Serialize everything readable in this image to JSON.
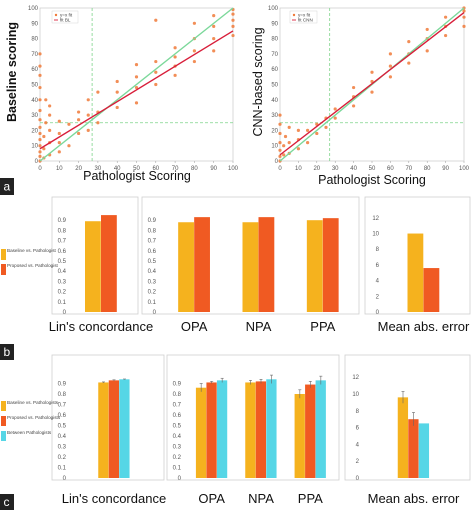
{
  "panel_letters": [
    "a",
    "b",
    "c"
  ],
  "colors": {
    "baseline": "#f5b21e",
    "proposed": "#f05a22",
    "between": "#56d6e6",
    "fit_green": "#7bd89a",
    "fit_red": "#d81e3a",
    "scatter": "#f07a3a",
    "dash": "#7ed48a",
    "panel_label_bg": "#222222"
  },
  "chart_data": [
    {
      "type": "scatter",
      "xlabel": "Pathologist Scoring",
      "ylabel": "Baseline scoring",
      "xlim": [
        0,
        100
      ],
      "ylim": [
        0,
        100
      ],
      "xticks": [
        "0",
        "10",
        "20",
        "30",
        "40",
        "50",
        "60",
        "70",
        "80",
        "90",
        "100"
      ],
      "yticks": [
        "0",
        "10",
        "20",
        "30",
        "40",
        "50",
        "60",
        "70",
        "80",
        "90",
        "100"
      ],
      "legend_labels": [
        "y=x fit",
        "fit BL"
      ],
      "guides": {
        "x": 27,
        "y": 25
      },
      "fit_lines": [
        {
          "x": [
            0,
            100
          ],
          "y": [
            0,
            100
          ]
        },
        {
          "x": [
            0,
            100
          ],
          "y": [
            8,
            85
          ]
        }
      ],
      "points": [
        [
          0,
          0
        ],
        [
          0,
          3
        ],
        [
          0,
          6
        ],
        [
          0,
          10
        ],
        [
          0,
          14
        ],
        [
          0,
          18
        ],
        [
          0,
          22
        ],
        [
          0,
          27
        ],
        [
          0,
          33
        ],
        [
          0,
          40
        ],
        [
          0,
          48
        ],
        [
          0,
          56
        ],
        [
          0,
          62
        ],
        [
          0,
          70
        ],
        [
          2,
          2
        ],
        [
          2,
          8
        ],
        [
          2,
          16
        ],
        [
          3,
          25
        ],
        [
          3,
          40
        ],
        [
          5,
          4
        ],
        [
          5,
          12
        ],
        [
          5,
          20
        ],
        [
          5,
          30
        ],
        [
          5,
          36
        ],
        [
          10,
          6
        ],
        [
          10,
          12
        ],
        [
          10,
          18
        ],
        [
          10,
          26
        ],
        [
          15,
          10
        ],
        [
          15,
          24
        ],
        [
          20,
          18
        ],
        [
          20,
          27
        ],
        [
          20,
          32
        ],
        [
          25,
          20
        ],
        [
          25,
          30
        ],
        [
          25,
          40
        ],
        [
          30,
          25
        ],
        [
          30,
          32
        ],
        [
          30,
          45
        ],
        [
          40,
          35
        ],
        [
          40,
          45
        ],
        [
          40,
          52
        ],
        [
          50,
          38
        ],
        [
          50,
          48
        ],
        [
          50,
          55
        ],
        [
          50,
          63
        ],
        [
          60,
          50
        ],
        [
          60,
          58
        ],
        [
          60,
          65
        ],
        [
          60,
          92
        ],
        [
          70,
          56
        ],
        [
          70,
          62
        ],
        [
          70,
          68
        ],
        [
          70,
          74
        ],
        [
          80,
          65
        ],
        [
          80,
          72
        ],
        [
          80,
          80
        ],
        [
          80,
          90
        ],
        [
          90,
          72
        ],
        [
          90,
          80
        ],
        [
          90,
          88
        ],
        [
          90,
          95
        ],
        [
          100,
          82
        ],
        [
          100,
          88
        ],
        [
          100,
          92
        ],
        [
          100,
          96
        ],
        [
          100,
          99
        ]
      ]
    },
    {
      "type": "scatter",
      "xlabel": "Pathologist Scoring",
      "ylabel": "CNN-based scoring",
      "xlim": [
        0,
        100
      ],
      "ylim": [
        0,
        100
      ],
      "xticks": [
        "0",
        "10",
        "20",
        "30",
        "40",
        "50",
        "60",
        "70",
        "80",
        "90",
        "100"
      ],
      "yticks": [
        "0",
        "10",
        "20",
        "30",
        "40",
        "50",
        "60",
        "70",
        "80",
        "90",
        "100"
      ],
      "legend_labels": [
        "y=x fit",
        "fit CNN"
      ],
      "guides": {
        "x": 27,
        "y": 25
      },
      "fit_lines": [
        {
          "x": [
            0,
            100
          ],
          "y": [
            0,
            100
          ]
        },
        {
          "x": [
            0,
            100
          ],
          "y": [
            4,
            97
          ]
        }
      ],
      "points": [
        [
          0,
          0
        ],
        [
          0,
          3
        ],
        [
          0,
          7
        ],
        [
          0,
          12
        ],
        [
          0,
          18
        ],
        [
          0,
          24
        ],
        [
          0,
          30
        ],
        [
          2,
          4
        ],
        [
          2,
          10
        ],
        [
          3,
          16
        ],
        [
          5,
          5
        ],
        [
          5,
          12
        ],
        [
          5,
          22
        ],
        [
          10,
          8
        ],
        [
          10,
          14
        ],
        [
          10,
          20
        ],
        [
          15,
          12
        ],
        [
          15,
          20
        ],
        [
          20,
          18
        ],
        [
          20,
          24
        ],
        [
          25,
          22
        ],
        [
          25,
          28
        ],
        [
          30,
          28
        ],
        [
          30,
          34
        ],
        [
          40,
          36
        ],
        [
          40,
          42
        ],
        [
          40,
          48
        ],
        [
          50,
          45
        ],
        [
          50,
          52
        ],
        [
          50,
          58
        ],
        [
          60,
          55
        ],
        [
          60,
          62
        ],
        [
          60,
          70
        ],
        [
          70,
          64
        ],
        [
          70,
          70
        ],
        [
          70,
          78
        ],
        [
          80,
          72
        ],
        [
          80,
          80
        ],
        [
          80,
          86
        ],
        [
          90,
          82
        ],
        [
          90,
          88
        ],
        [
          90,
          94
        ],
        [
          100,
          88
        ],
        [
          100,
          94
        ],
        [
          100,
          98
        ],
        [
          100,
          100
        ]
      ]
    },
    {
      "type": "bar",
      "series": [
        {
          "name": "Baseline vs. Pathologist"
        },
        {
          "name": "Proposed vs. Pathologist"
        }
      ],
      "groups": [
        {
          "label": "Lin's concordance",
          "values": [
            0.89,
            0.95
          ],
          "ylim": [
            0,
            1.0
          ],
          "yticks": [
            "0",
            "0.1",
            "0.2",
            "0.3",
            "0.4",
            "0.5",
            "0.6",
            "0.7",
            "0.8",
            "0.9"
          ]
        },
        {
          "label": "OPA",
          "values": [
            0.88,
            0.93
          ],
          "ylim": [
            0,
            1.0
          ],
          "yticks": [
            "0",
            "0.1",
            "0.2",
            "0.3",
            "0.4",
            "0.5",
            "0.6",
            "0.7",
            "0.8",
            "0.9"
          ]
        },
        {
          "label": "NPA",
          "values": [
            0.88,
            0.93
          ],
          "ylim": [
            0,
            1.0
          ],
          "yticks": []
        },
        {
          "label": "PPA",
          "values": [
            0.9,
            0.92
          ],
          "ylim": [
            0,
            1.0
          ],
          "yticks": []
        },
        {
          "label": "Mean abs. error",
          "values": [
            10,
            5.6
          ],
          "ylim": [
            0,
            13
          ],
          "yticks": [
            "0",
            "2",
            "4",
            "6",
            "8",
            "10",
            "12"
          ]
        }
      ]
    },
    {
      "type": "bar",
      "series": [
        {
          "name": "Baseline vs. Pathologists"
        },
        {
          "name": "Proposed vs. Pathologists"
        },
        {
          "name": "Between Pathologists"
        }
      ],
      "groups": [
        {
          "label": "Lin's concordance",
          "values": [
            0.91,
            0.93,
            0.94
          ],
          "errors": [
            0.005,
            0.005,
            0.003
          ],
          "ylim": [
            0,
            1.0
          ],
          "yticks": [
            "0",
            "0.1",
            "0.2",
            "0.3",
            "0.4",
            "0.5",
            "0.6",
            "0.7",
            "0.8",
            "0.9"
          ]
        },
        {
          "label": "OPA",
          "values": [
            0.86,
            0.91,
            0.93
          ],
          "errors": [
            0.04,
            0.01,
            0.02
          ],
          "ylim": [
            0,
            1.0
          ],
          "yticks": [
            "0",
            "0.1",
            "0.2",
            "0.3",
            "0.4",
            "0.5",
            "0.6",
            "0.7",
            "0.8",
            "0.9"
          ]
        },
        {
          "label": "NPA",
          "values": [
            0.91,
            0.92,
            0.94
          ],
          "errors": [
            0.02,
            0.02,
            0.04
          ],
          "ylim": [
            0,
            1.0
          ],
          "yticks": []
        },
        {
          "label": "PPA",
          "values": [
            0.8,
            0.89,
            0.93
          ],
          "errors": [
            0.04,
            0.03,
            0.04
          ],
          "ylim": [
            0,
            1.0
          ],
          "yticks": []
        },
        {
          "label": "Mean abs. error",
          "values": [
            9.6,
            7.0,
            6.5
          ],
          "errors": [
            0.7,
            0.8,
            0.0
          ],
          "ylim": [
            0,
            12.5
          ],
          "yticks": [
            "0",
            "2",
            "4",
            "6",
            "8",
            "10",
            "12"
          ]
        }
      ]
    }
  ]
}
